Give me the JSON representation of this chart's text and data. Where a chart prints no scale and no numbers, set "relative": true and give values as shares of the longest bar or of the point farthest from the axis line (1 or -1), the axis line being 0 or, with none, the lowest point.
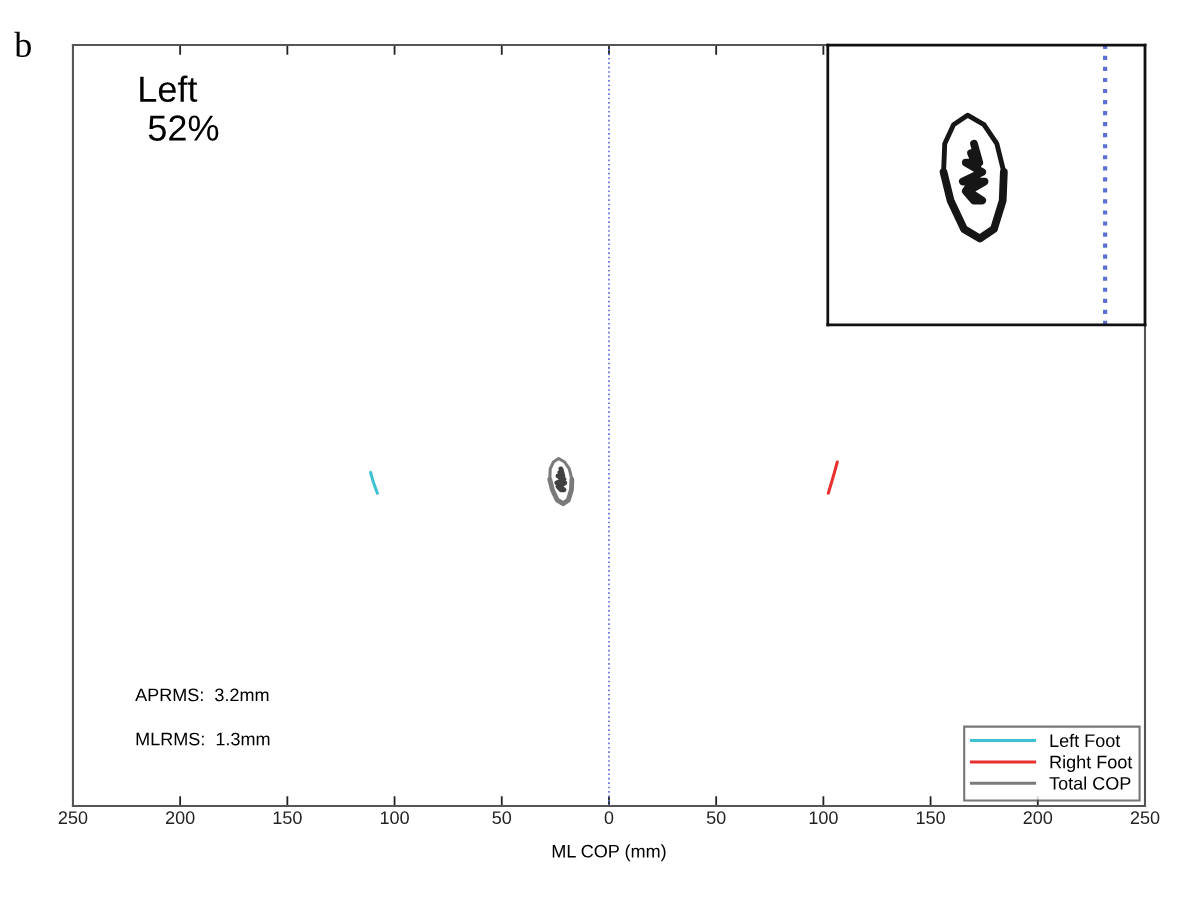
{
  "chart_data": {
    "type": "line",
    "relative": true,
    "xlabel": "ML COP (mm)",
    "xlim": [
      -250,
      250
    ],
    "xticks": [
      {
        "value": -250,
        "label": "250"
      },
      {
        "value": -200,
        "label": "200"
      },
      {
        "value": -150,
        "label": "150"
      },
      {
        "value": -100,
        "label": "100"
      },
      {
        "value": -50,
        "label": "50"
      },
      0,
      50,
      100,
      150,
      200,
      250
    ],
    "series": [
      {
        "name": "Left Foot",
        "color": "#3cc0d2",
        "x": [
          -111.2,
          -109.8,
          -108.0
        ],
        "values": [
          0.96,
          0.93,
          0.9
        ]
      },
      {
        "name": "Right Foot",
        "color": "#e83030",
        "x": [
          106.5,
          104.7,
          102.3
        ],
        "values": [
          0.99,
          0.95,
          0.9
        ]
      },
      {
        "name": "Total COP",
        "color": "#7a7a7a",
        "x": [
          -27.6,
          -27.4,
          -25.9,
          -23.5,
          -20.7,
          -18.5,
          -17.3
        ],
        "values": [
          0.94,
          0.97,
          0.99,
          1.0,
          0.99,
          0.97,
          0.94
        ]
      },
      {
        "color": "#7a7a7a",
        "x": [
          -27.6,
          -26.4,
          -24.1,
          -21.4,
          -19.0,
          -17.5,
          -17.3
        ],
        "values": [
          0.94,
          0.91,
          0.88,
          0.87,
          0.88,
          0.91,
          0.94
        ]
      },
      {
        "color": "#404040",
        "x": [
          -22.4,
          -21.5,
          -23.8,
          -21.0,
          -24.3,
          -20.6,
          -23.4,
          -21.0,
          -22.4,
          -23.8,
          -21.5,
          -22.9
        ],
        "values": [
          0.97,
          0.95,
          0.95,
          0.94,
          0.93,
          0.93,
          0.92,
          0.91,
          0.91,
          0.92,
          0.94,
          0.96
        ]
      }
    ],
    "ref_lines": [
      {
        "axis": "x",
        "value": 0,
        "color": "#5b6fd6",
        "line_style": "dotted"
      }
    ],
    "legend": "bottom right",
    "annotations": [
      "b",
      "Left\n 52%",
      "APRMS:  3.2mm",
      "MLRMS:  1.3mm"
    ]
  }
}
